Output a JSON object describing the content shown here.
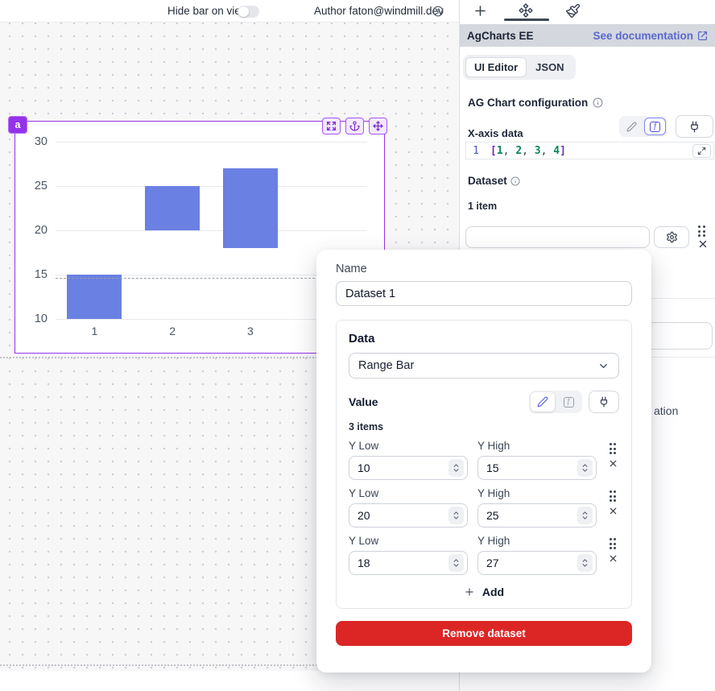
{
  "topbar": {
    "hide_bar_label": "Hide bar on view",
    "author_label": "Author",
    "author_email": "faton@windmill.dev"
  },
  "component": {
    "badge": "a"
  },
  "chart_data": {
    "type": "bar",
    "subtype": "range-bar",
    "title": "",
    "x_categories": [
      "1",
      "2",
      "3",
      "4"
    ],
    "yticks": [
      10,
      15,
      20,
      25,
      30
    ],
    "ylim": [
      10,
      30
    ],
    "series": [
      {
        "name": "Dataset 1",
        "values": [
          {
            "x": 1,
            "y_low": 10,
            "y_high": 15
          },
          {
            "x": 2,
            "y_low": 20,
            "y_high": 25
          },
          {
            "x": 3,
            "y_low": 18,
            "y_high": 27
          }
        ]
      }
    ],
    "bar_color": "#6a80e2",
    "grid": true,
    "legend": false
  },
  "sidebar": {
    "panel_title": "AgCharts EE",
    "doc_link_label": "See documentation",
    "tabs": [
      {
        "label": "UI Editor"
      },
      {
        "label": "JSON"
      }
    ],
    "section_title": "AG Chart configuration",
    "xaxis_label": "X-axis data",
    "code": {
      "line_number": "1",
      "tokens": [
        {
          "text": "[",
          "type": "bracket"
        },
        {
          "text": "1",
          "type": "number"
        },
        {
          "text": ", ",
          "type": "plain"
        },
        {
          "text": "2",
          "type": "number"
        },
        {
          "text": ", ",
          "type": "plain"
        },
        {
          "text": "3",
          "type": "number"
        },
        {
          "text": ", ",
          "type": "plain"
        },
        {
          "text": "4",
          "type": "number"
        },
        {
          "text": "]",
          "type": "bracket"
        }
      ]
    },
    "dataset_label": "Dataset",
    "dataset_count": "1 item",
    "hidden_text_fragment": "ation"
  },
  "modal": {
    "name_label": "Name",
    "name_value": "Dataset 1",
    "data_label": "Data",
    "data_type_value": "Range Bar",
    "value_label": "Value",
    "items_count": "3 items",
    "rows": [
      {
        "low_label": "Y Low",
        "high_label": "Y High",
        "low_value": "10",
        "high_value": "15"
      },
      {
        "low_label": "Y Low",
        "high_label": "Y High",
        "low_value": "20",
        "high_value": "25"
      },
      {
        "low_label": "Y Low",
        "high_label": "Y High",
        "low_value": "18",
        "high_value": "27"
      }
    ],
    "add_label": "Add",
    "remove_label": "Remove dataset"
  },
  "colors": {
    "selection_purple": "#9333ea",
    "bar": "#6a80e2",
    "accent_indigo": "#4f46e5",
    "danger_red": "#dc2626",
    "doc_link": "#5a68cf"
  }
}
